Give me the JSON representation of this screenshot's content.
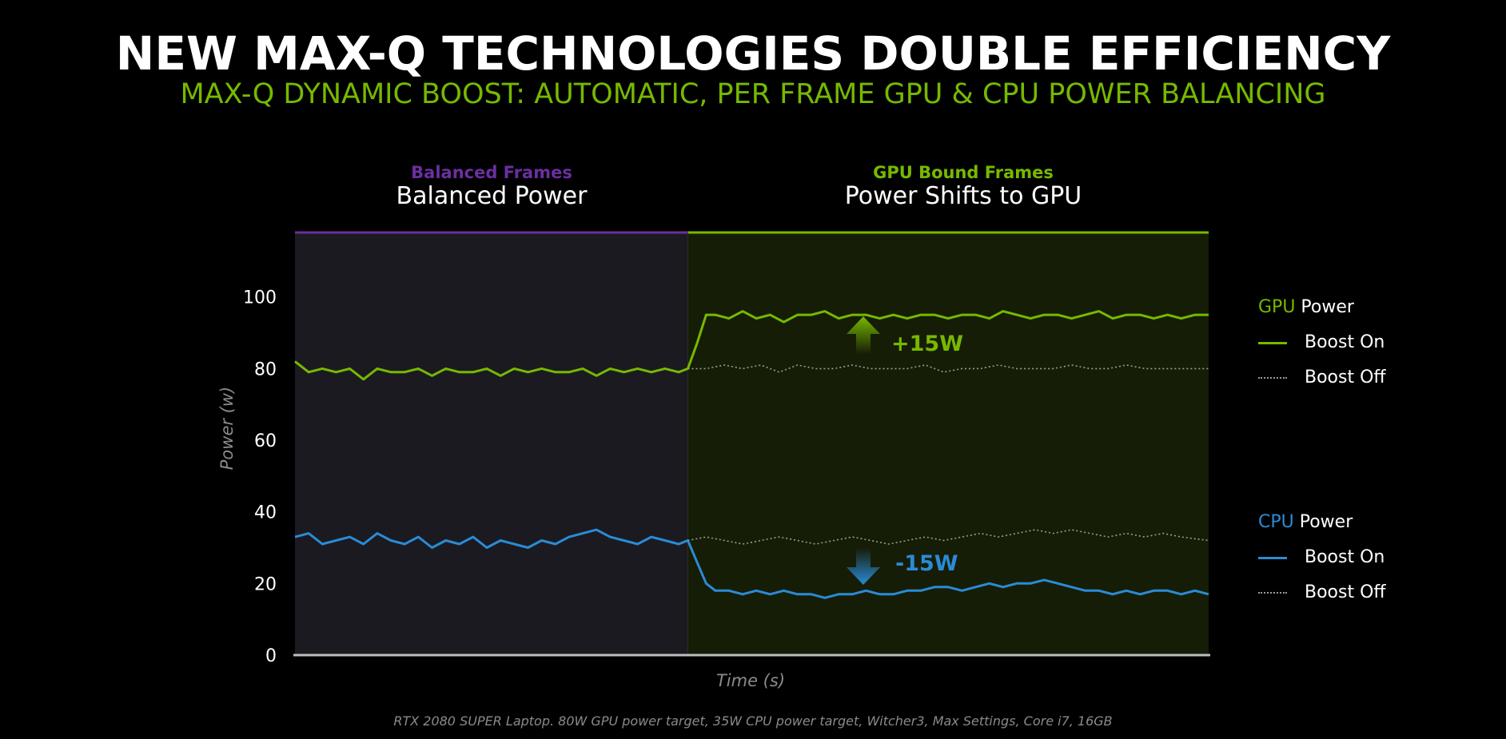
{
  "title": "NEW MAX-Q TECHNOLOGIES DOUBLE EFFICIENCY",
  "subtitle": "MAX-Q DYNAMIC BOOST: AUTOMATIC, PER FRAME GPU & CPU POWER BALANCING",
  "sections": {
    "balanced": {
      "label": "Balanced Frames",
      "title": "Balanced Power",
      "color": "#6b2fa0"
    },
    "gpu": {
      "label": "GPU Bound Frames",
      "title": "Power Shifts to GPU",
      "color": "#76b900"
    }
  },
  "legend": {
    "gpu": {
      "prefix": "GPU",
      "suffix": " Power",
      "on": "Boost On",
      "off": "Boost Off",
      "color": "#76b900"
    },
    "cpu": {
      "prefix": "CPU",
      "suffix": " Power",
      "on": "Boost On",
      "off": "Boost Off",
      "color": "#2a8bd6"
    }
  },
  "annotations": {
    "gpu_delta": "+15W",
    "cpu_delta": "-15W"
  },
  "footer": "RTX 2080 SUPER Laptop. 80W GPU power target, 35W CPU power target, Witcher3, Max Settings, Core i7, 16GB",
  "chart_data": {
    "type": "line",
    "ylabel": "Power (w)",
    "xlabel": "Time (s)",
    "ylim": [
      0,
      118
    ],
    "yticks": [
      0,
      20,
      40,
      60,
      80,
      100
    ],
    "xlim": [
      0,
      100
    ],
    "boost_start": 43,
    "colors": {
      "gpu": "#76b900",
      "cpu": "#2a8bd6",
      "off": "#9a9a9a"
    },
    "series": [
      {
        "name": "GPU Power Boost On",
        "key": "gpu_on",
        "x": [
          0,
          1.5,
          3,
          4.5,
          6,
          7.5,
          9,
          10.5,
          12,
          13.5,
          15,
          16.5,
          18,
          19.5,
          21,
          22.5,
          24,
          25.5,
          27,
          28.5,
          30,
          31.5,
          33,
          34.5,
          36,
          37.5,
          39,
          40.5,
          42,
          43,
          44,
          45,
          46,
          47.5,
          49,
          50.5,
          52,
          53.5,
          55,
          56.5,
          58,
          59.5,
          61,
          62.5,
          64,
          65.5,
          67,
          68.5,
          70,
          71.5,
          73,
          74.5,
          76,
          77.5,
          79,
          80.5,
          82,
          83.5,
          85,
          86.5,
          88,
          89.5,
          91,
          92.5,
          94,
          95.5,
          97,
          98.5,
          100
        ],
        "y": [
          82,
          79,
          80,
          79,
          80,
          77,
          80,
          79,
          79,
          80,
          78,
          80,
          79,
          79,
          80,
          78,
          80,
          79,
          80,
          79,
          79,
          80,
          78,
          80,
          79,
          80,
          79,
          80,
          79,
          80,
          87,
          95,
          95,
          94,
          96,
          94,
          95,
          93,
          95,
          95,
          96,
          94,
          95,
          95,
          94,
          95,
          94,
          95,
          95,
          94,
          95,
          95,
          94,
          96,
          95,
          94,
          95,
          95,
          94,
          95,
          96,
          94,
          95,
          95,
          94,
          95,
          94,
          95,
          95
        ]
      },
      {
        "name": "GPU Power Boost Off",
        "key": "gpu_off",
        "x": [
          43,
          45,
          47,
          49,
          51,
          53,
          55,
          57,
          59,
          61,
          63,
          65,
          67,
          69,
          71,
          73,
          75,
          77,
          79,
          81,
          83,
          85,
          87,
          89,
          91,
          93,
          95,
          97,
          100
        ],
        "y": [
          80,
          80,
          81,
          80,
          81,
          79,
          81,
          80,
          80,
          81,
          80,
          80,
          80,
          81,
          79,
          80,
          80,
          81,
          80,
          80,
          80,
          81,
          80,
          80,
          81,
          80,
          80,
          80,
          80
        ]
      },
      {
        "name": "CPU Power Boost On",
        "key": "cpu_on",
        "x": [
          0,
          1.5,
          3,
          4.5,
          6,
          7.5,
          9,
          10.5,
          12,
          13.5,
          15,
          16.5,
          18,
          19.5,
          21,
          22.5,
          24,
          25.5,
          27,
          28.5,
          30,
          31.5,
          33,
          34.5,
          36,
          37.5,
          39,
          40.5,
          42,
          43,
          44,
          45,
          46,
          47.5,
          49,
          50.5,
          52,
          53.5,
          55,
          56.5,
          58,
          59.5,
          61,
          62.5,
          64,
          65.5,
          67,
          68.5,
          70,
          71.5,
          73,
          74.5,
          76,
          77.5,
          79,
          80.5,
          82,
          83.5,
          85,
          86.5,
          88,
          89.5,
          91,
          92.5,
          94,
          95.5,
          97,
          98.5,
          100
        ],
        "y": [
          33,
          34,
          31,
          32,
          33,
          31,
          34,
          32,
          31,
          33,
          30,
          32,
          31,
          33,
          30,
          32,
          31,
          30,
          32,
          31,
          33,
          34,
          35,
          33,
          32,
          31,
          33,
          32,
          31,
          32,
          26,
          20,
          18,
          18,
          17,
          18,
          17,
          18,
          17,
          17,
          16,
          17,
          17,
          18,
          17,
          17,
          18,
          18,
          19,
          19,
          18,
          19,
          20,
          19,
          20,
          20,
          21,
          20,
          19,
          18,
          18,
          17,
          18,
          17,
          18,
          18,
          17,
          18,
          17
        ]
      },
      {
        "name": "CPU Power Boost Off",
        "key": "cpu_off",
        "x": [
          43,
          45,
          47,
          49,
          51,
          53,
          55,
          57,
          59,
          61,
          63,
          65,
          67,
          69,
          71,
          73,
          75,
          77,
          79,
          81,
          83,
          85,
          87,
          89,
          91,
          93,
          95,
          97,
          100
        ],
        "y": [
          32,
          33,
          32,
          31,
          32,
          33,
          32,
          31,
          32,
          33,
          32,
          31,
          32,
          33,
          32,
          33,
          34,
          33,
          34,
          35,
          34,
          35,
          34,
          33,
          34,
          33,
          34,
          33,
          32
        ]
      }
    ]
  }
}
